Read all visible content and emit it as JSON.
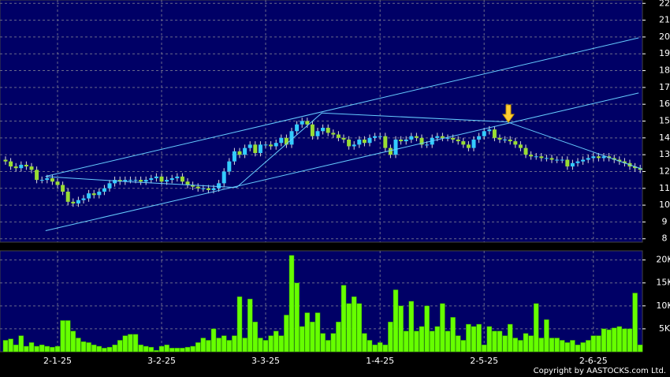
{
  "chart_data": [
    {
      "type": "candlestick",
      "open": [
        12.7,
        12.6,
        12.3,
        12.2,
        12.4,
        12.3,
        12.1,
        11.5,
        11.5,
        11.6,
        11.4,
        11.2,
        10.8,
        10.2,
        10.1,
        10.3,
        10.4,
        10.7,
        10.6,
        10.8,
        11.0,
        11.3,
        11.5,
        11.4,
        11.5,
        11.5,
        11.5,
        11.4,
        11.5,
        11.6,
        11.7,
        11.4,
        11.5,
        11.6,
        11.7,
        11.4,
        11.2,
        11.1,
        11.0,
        11.0,
        10.9,
        11.0,
        11.3,
        12.0,
        12.6,
        13.2,
        13.0,
        13.4,
        13.6,
        13.1,
        13.6,
        13.6,
        13.5,
        13.7,
        14.0,
        13.6,
        14.4,
        14.8,
        15.0,
        14.8,
        14.1,
        14.4,
        14.6,
        14.3,
        14.2,
        14.0,
        13.9,
        13.5,
        13.6,
        13.9,
        13.7,
        14.0,
        14.1,
        14.1,
        13.4,
        13.0,
        13.9,
        13.8,
        13.9,
        14.1,
        14.0,
        13.6,
        13.6,
        14.0,
        14.1,
        14.0,
        14.0,
        13.9,
        13.8,
        13.6,
        13.4,
        13.9,
        14.1,
        14.4,
        14.5,
        14.0,
        13.9,
        13.9,
        13.8,
        13.6,
        13.4,
        13.0,
        12.9,
        12.9,
        12.8,
        12.8,
        12.7,
        12.7,
        12.7,
        12.3,
        12.5,
        12.6,
        12.7,
        12.8,
        12.9,
        12.8,
        12.9,
        12.8,
        12.7,
        12.6,
        12.5,
        12.3,
        12.2
      ],
      "high": [
        12.9,
        12.8,
        12.5,
        12.6,
        12.6,
        12.5,
        12.3,
        11.7,
        11.8,
        11.8,
        11.6,
        11.4,
        11.0,
        10.4,
        10.5,
        10.6,
        10.9,
        10.9,
        11.0,
        11.2,
        11.5,
        11.7,
        11.7,
        11.7,
        11.7,
        11.7,
        11.7,
        11.7,
        11.8,
        11.9,
        11.9,
        11.7,
        11.8,
        11.9,
        11.9,
        11.6,
        11.4,
        11.3,
        11.2,
        11.2,
        11.2,
        11.5,
        12.2,
        12.8,
        13.4,
        13.4,
        13.6,
        13.8,
        13.8,
        13.8,
        13.8,
        13.8,
        13.9,
        14.2,
        14.2,
        14.6,
        15.0,
        15.2,
        15.2,
        15.0,
        14.6,
        14.8,
        14.8,
        14.5,
        14.4,
        14.2,
        14.1,
        13.8,
        14.1,
        14.1,
        14.2,
        14.3,
        14.3,
        14.3,
        13.6,
        14.1,
        14.1,
        14.1,
        14.3,
        14.3,
        14.2,
        13.8,
        14.2,
        14.3,
        14.3,
        14.2,
        14.2,
        14.1,
        14.0,
        13.8,
        14.1,
        14.3,
        14.6,
        14.7,
        14.7,
        14.2,
        14.1,
        14.1,
        14.0,
        13.8,
        13.6,
        13.2,
        13.1,
        13.1,
        13.0,
        13.0,
        12.9,
        12.9,
        12.9,
        12.7,
        12.8,
        12.9,
        13.0,
        13.1,
        13.1,
        13.1,
        13.1,
        13.0,
        12.9,
        12.8,
        12.7,
        12.5,
        12.4
      ],
      "low": [
        12.4,
        12.1,
        12.0,
        12.0,
        12.1,
        11.9,
        11.3,
        11.3,
        11.3,
        11.2,
        11.0,
        10.6,
        10.0,
        9.9,
        9.9,
        10.1,
        10.2,
        10.4,
        10.4,
        10.6,
        10.8,
        11.1,
        11.2,
        11.2,
        11.3,
        11.3,
        11.2,
        11.2,
        11.3,
        11.4,
        11.2,
        11.2,
        11.3,
        11.4,
        11.2,
        11.0,
        10.9,
        10.8,
        10.8,
        10.7,
        10.7,
        10.8,
        11.1,
        11.8,
        12.4,
        12.8,
        12.8,
        13.2,
        12.9,
        12.9,
        13.4,
        13.3,
        13.3,
        13.5,
        13.4,
        13.4,
        14.2,
        14.6,
        14.6,
        13.9,
        13.9,
        14.2,
        14.1,
        14.0,
        13.8,
        13.7,
        13.3,
        13.3,
        13.4,
        13.5,
        13.5,
        13.8,
        13.9,
        13.2,
        12.8,
        12.8,
        13.6,
        13.6,
        13.7,
        13.8,
        13.4,
        13.4,
        13.4,
        13.8,
        13.8,
        13.8,
        13.7,
        13.6,
        13.4,
        13.2,
        13.2,
        13.7,
        13.9,
        14.2,
        13.8,
        13.7,
        13.7,
        13.6,
        13.4,
        13.2,
        12.8,
        12.7,
        12.7,
        12.6,
        12.6,
        12.5,
        12.5,
        12.5,
        12.1,
        12.1,
        12.3,
        12.4,
        12.5,
        12.6,
        12.6,
        12.6,
        12.6,
        12.5,
        12.4,
        12.3,
        12.1,
        12.0,
        11.9
      ],
      "close": [
        12.6,
        12.3,
        12.2,
        12.4,
        12.3,
        12.1,
        11.5,
        11.5,
        11.6,
        11.4,
        11.2,
        10.8,
        10.2,
        10.1,
        10.3,
        10.4,
        10.7,
        10.6,
        10.8,
        11.0,
        11.3,
        11.5,
        11.4,
        11.5,
        11.5,
        11.5,
        11.4,
        11.5,
        11.6,
        11.7,
        11.4,
        11.5,
        11.6,
        11.7,
        11.4,
        11.2,
        11.1,
        11.0,
        11.0,
        10.9,
        11.0,
        11.3,
        12.0,
        12.6,
        13.2,
        13.0,
        13.4,
        13.6,
        13.1,
        13.6,
        13.6,
        13.5,
        13.7,
        14.0,
        13.6,
        14.4,
        14.8,
        15.0,
        14.8,
        14.1,
        14.4,
        14.6,
        14.3,
        14.2,
        14.0,
        13.9,
        13.5,
        13.6,
        13.9,
        13.7,
        14.0,
        14.1,
        14.1,
        13.4,
        13.0,
        13.9,
        13.8,
        13.9,
        14.1,
        14.0,
        13.6,
        13.6,
        14.0,
        14.1,
        14.0,
        14.0,
        13.9,
        13.8,
        13.6,
        13.4,
        13.9,
        14.1,
        14.4,
        14.5,
        14.0,
        13.9,
        13.9,
        13.8,
        13.6,
        13.4,
        13.0,
        12.9,
        12.9,
        12.8,
        12.8,
        12.7,
        12.7,
        12.7,
        12.3,
        12.5,
        12.6,
        12.7,
        12.8,
        12.9,
        12.8,
        12.9,
        12.8,
        12.7,
        12.6,
        12.5,
        12.3,
        12.2,
        12.1
      ],
      "up_color": "#33ccff",
      "down_color": "#99dd33",
      "ylim": [
        7.8,
        22.2
      ],
      "yticks": [
        8,
        9,
        10,
        11,
        12,
        13,
        14,
        15,
        16,
        17,
        18,
        19,
        20,
        21,
        22
      ],
      "grid": true,
      "trendlines": [
        {
          "x": [
            7.7,
            121.7
          ],
          "y": [
            11.71,
            19.95
          ]
        },
        {
          "x": [
            7.7,
            121.7
          ],
          "y": [
            8.48,
            16.67
          ]
        },
        {
          "x": [
            7.7,
            23.2,
            44.4,
            60.8,
            96.4,
            122.4
          ],
          "y": [
            11.7,
            11.4,
            11.05,
            15.48,
            14.95,
            12.14
          ]
        }
      ],
      "trendline_color": "#66ccff"
    },
    {
      "type": "bar",
      "categories": [
        null,
        null,
        null,
        null,
        null,
        null,
        null,
        null,
        null,
        null,
        "2-1-25",
        null,
        null,
        null,
        null,
        null,
        null,
        null,
        null,
        null,
        null,
        null,
        null,
        null,
        null,
        null,
        null,
        null,
        null,
        null,
        "3-2-25",
        null,
        null,
        null,
        null,
        null,
        null,
        null,
        null,
        null,
        null,
        null,
        null,
        null,
        null,
        null,
        null,
        null,
        null,
        null,
        "3-3-25",
        null,
        null,
        null,
        null,
        null,
        null,
        null,
        null,
        null,
        null,
        null,
        null,
        null,
        null,
        null,
        null,
        null,
        null,
        null,
        null,
        null,
        "1-4-25",
        null,
        null,
        null,
        null,
        null,
        null,
        null,
        null,
        null,
        null,
        null,
        null,
        null,
        null,
        null,
        null,
        null,
        null,
        null,
        "2-5-25",
        null,
        null,
        null,
        null,
        null,
        null,
        null,
        null,
        null,
        null,
        null,
        null,
        null,
        null,
        null,
        null,
        null,
        null,
        null,
        null,
        "2-6-25",
        null,
        null,
        null,
        null,
        null,
        null,
        null,
        null,
        null
      ],
      "values": [
        2500,
        2800,
        1500,
        3500,
        1200,
        2000,
        1200,
        1500,
        1200,
        1000,
        1200,
        6800,
        6800,
        4500,
        3000,
        2200,
        2000,
        1500,
        1200,
        800,
        1000,
        1500,
        2500,
        3500,
        3800,
        3800,
        1500,
        1200,
        1000,
        300,
        1200,
        1500,
        800,
        800,
        800,
        1000,
        1200,
        2000,
        3000,
        2500,
        5000,
        3000,
        3500,
        2500,
        3500,
        12000,
        3000,
        11500,
        6500,
        3000,
        2500,
        3500,
        4500,
        3500,
        8000,
        21000,
        15000,
        5500,
        8500,
        6500,
        8500,
        4000,
        2500,
        4000,
        6500,
        14500,
        10500,
        12000,
        10500,
        4000,
        2500,
        1500,
        2000,
        1500,
        6500,
        13500,
        10000,
        4500,
        11000,
        4500,
        5500,
        10000,
        4500,
        5500,
        10500,
        4500,
        7500,
        3500,
        2500,
        6000,
        5500,
        6000,
        1500,
        5500,
        4500,
        4500,
        3500,
        6000,
        3000,
        2500,
        4000,
        3500,
        10500,
        3000,
        7000,
        3000,
        3000,
        2500,
        2000,
        2500,
        1500,
        2000,
        2500,
        3500,
        3500,
        5000,
        4800,
        5200,
        5500,
        5000,
        5000,
        12800,
        1500
      ],
      "color": "#66ff00",
      "ylim": [
        0,
        22000
      ],
      "yticks": [
        {
          "value": 5000,
          "label": "5K"
        },
        {
          "value": 10000,
          "label": "10K"
        },
        {
          "value": 15000,
          "label": "15K"
        },
        {
          "value": 20000,
          "label": "20K"
        }
      ],
      "grid": true,
      "source": "Copyright by AASTOCKS.com Ltd."
    }
  ]
}
